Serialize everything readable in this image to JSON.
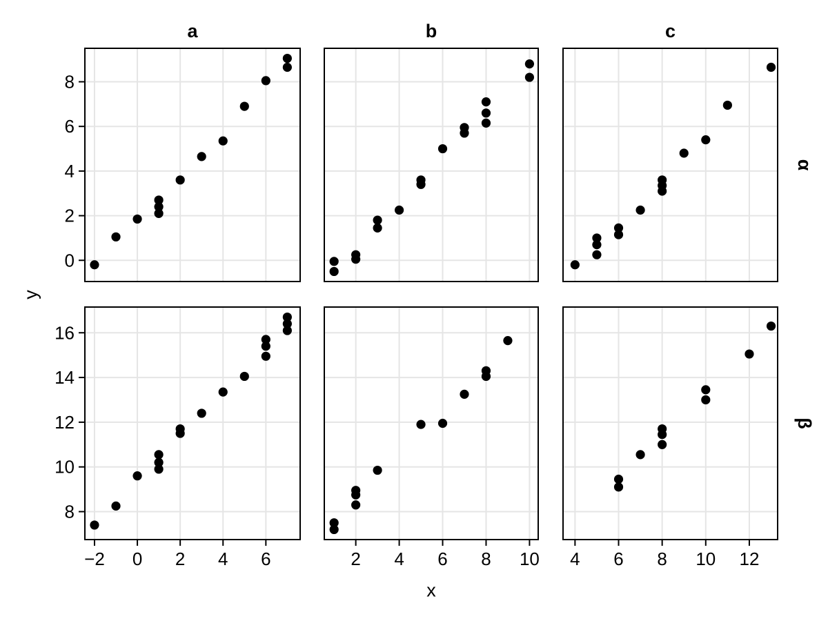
{
  "figure": {
    "xlabel": "x",
    "ylabel": "y",
    "colors": {
      "background": "#ffffff",
      "points": "#000000",
      "grid": "#e5e5e5",
      "border": "#000000",
      "text": "#000000"
    }
  },
  "chart_data": {
    "type": "scatter",
    "title": "",
    "xlabel": "x",
    "ylabel": "y",
    "grid": true,
    "facet_columns": [
      {
        "label": "a",
        "xlim": [
          -2.45,
          7.6
        ],
        "xticks": [
          -2,
          0,
          2,
          4,
          6
        ]
      },
      {
        "label": "b",
        "xlim": [
          0.55,
          10.4
        ],
        "xticks": [
          2,
          4,
          6,
          8,
          10
        ]
      },
      {
        "label": "c",
        "xlim": [
          3.45,
          13.3
        ],
        "xticks": [
          4,
          6,
          8,
          10,
          12
        ]
      }
    ],
    "facet_rows": [
      {
        "label": "α",
        "name": "alpha",
        "ylim": [
          -0.95,
          9.5
        ],
        "yticks": [
          0,
          2,
          4,
          6,
          8
        ]
      },
      {
        "label": "β",
        "name": "beta",
        "ylim": [
          6.75,
          17.15
        ],
        "yticks": [
          8,
          10,
          12,
          14,
          16
        ]
      }
    ],
    "panels": [
      {
        "row": "alpha",
        "col": "a",
        "points": [
          [
            -2,
            -0.2
          ],
          [
            -1,
            1.05
          ],
          [
            0,
            1.85
          ],
          [
            1,
            2.1
          ],
          [
            1,
            2.4
          ],
          [
            1,
            2.7
          ],
          [
            2,
            3.6
          ],
          [
            3,
            4.65
          ],
          [
            4,
            5.35
          ],
          [
            5,
            6.9
          ],
          [
            6,
            8.05
          ],
          [
            7,
            8.65
          ],
          [
            7,
            9.05
          ]
        ]
      },
      {
        "row": "alpha",
        "col": "b",
        "points": [
          [
            1,
            -0.5
          ],
          [
            1,
            -0.05
          ],
          [
            2,
            0.05
          ],
          [
            2,
            0.25
          ],
          [
            3,
            1.45
          ],
          [
            3,
            1.8
          ],
          [
            4,
            2.25
          ],
          [
            5,
            3.4
          ],
          [
            5,
            3.6
          ],
          [
            6,
            5.0
          ],
          [
            7,
            5.7
          ],
          [
            7,
            5.95
          ],
          [
            8,
            6.15
          ],
          [
            8,
            6.6
          ],
          [
            8,
            7.1
          ],
          [
            10,
            8.2
          ],
          [
            10,
            8.8
          ]
        ]
      },
      {
        "row": "alpha",
        "col": "c",
        "points": [
          [
            4,
            -0.2
          ],
          [
            5,
            0.25
          ],
          [
            5,
            0.7
          ],
          [
            5,
            1.0
          ],
          [
            6,
            1.15
          ],
          [
            6,
            1.45
          ],
          [
            7,
            2.25
          ],
          [
            8,
            3.1
          ],
          [
            8,
            3.35
          ],
          [
            8,
            3.6
          ],
          [
            9,
            4.8
          ],
          [
            10,
            5.4
          ],
          [
            11,
            6.95
          ],
          [
            13,
            8.65
          ]
        ]
      },
      {
        "row": "beta",
        "col": "a",
        "points": [
          [
            -2,
            7.4
          ],
          [
            -1,
            8.25
          ],
          [
            0,
            9.6
          ],
          [
            1,
            9.9
          ],
          [
            1,
            10.2
          ],
          [
            1,
            10.55
          ],
          [
            2,
            11.5
          ],
          [
            2,
            11.7
          ],
          [
            3,
            12.4
          ],
          [
            4,
            13.35
          ],
          [
            5,
            14.05
          ],
          [
            6,
            14.95
          ],
          [
            6,
            15.4
          ],
          [
            6,
            15.7
          ],
          [
            7,
            16.1
          ],
          [
            7,
            16.4
          ],
          [
            7,
            16.7
          ]
        ]
      },
      {
        "row": "beta",
        "col": "b",
        "points": [
          [
            1,
            7.2
          ],
          [
            1,
            7.5
          ],
          [
            2,
            8.3
          ],
          [
            2,
            8.75
          ],
          [
            2,
            8.95
          ],
          [
            3,
            9.85
          ],
          [
            5,
            11.9
          ],
          [
            6,
            11.95
          ],
          [
            7,
            13.25
          ],
          [
            8,
            14.05
          ],
          [
            8,
            14.3
          ],
          [
            9,
            15.65
          ]
        ]
      },
      {
        "row": "beta",
        "col": "c",
        "points": [
          [
            6,
            9.1
          ],
          [
            6,
            9.45
          ],
          [
            7,
            10.55
          ],
          [
            8,
            11.0
          ],
          [
            8,
            11.45
          ],
          [
            8,
            11.7
          ],
          [
            10,
            13.0
          ],
          [
            10,
            13.45
          ],
          [
            12,
            15.05
          ],
          [
            13,
            16.3
          ]
        ]
      }
    ]
  }
}
